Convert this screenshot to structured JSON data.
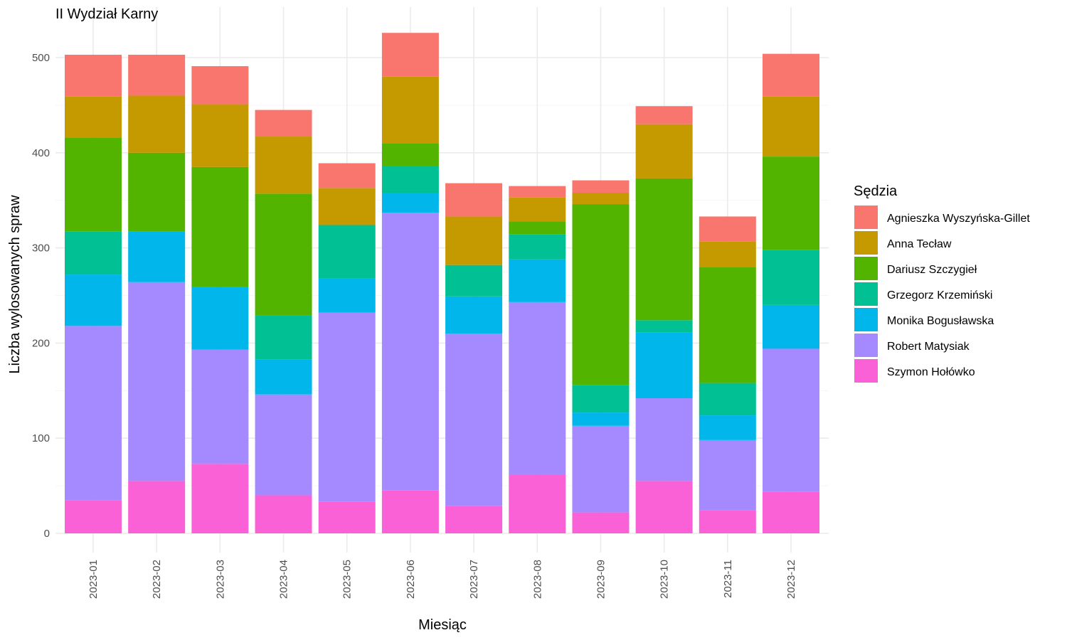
{
  "chart_data": {
    "type": "bar",
    "stacked": true,
    "title": "II Wydział Karny",
    "xlabel": "Miesiąc",
    "ylabel": "Liczba wylosowanych spraw",
    "ylim": [
      0,
      540
    ],
    "yticks": [
      0,
      100,
      200,
      300,
      400,
      500
    ],
    "grid": true,
    "legend_title": "Sędzia",
    "legend_position": "right",
    "categories": [
      "2023-01",
      "2023-02",
      "2023-03",
      "2023-04",
      "2023-05",
      "2023-06",
      "2023-07",
      "2023-08",
      "2023-09",
      "2023-10",
      "2023-11",
      "2023-12"
    ],
    "series": [
      {
        "name": "Szymon Hołówko",
        "color": "#FB61D7",
        "values": [
          35,
          55,
          73,
          40,
          33,
          45,
          29,
          62,
          22,
          55,
          24,
          44
        ]
      },
      {
        "name": "Robert Matysiak",
        "color": "#A58AFF",
        "values": [
          183,
          209,
          120,
          106,
          199,
          292,
          181,
          181,
          91,
          87,
          74,
          150
        ]
      },
      {
        "name": "Monika Bogusławska",
        "color": "#00B6EB",
        "values": [
          54,
          53,
          66,
          37,
          36,
          21,
          39,
          45,
          14,
          69,
          26,
          46
        ]
      },
      {
        "name": "Grzegorz Krzemiński",
        "color": "#00C094",
        "values": [
          45,
          0,
          0,
          46,
          56,
          28,
          33,
          26,
          29,
          13,
          34,
          58
        ]
      },
      {
        "name": "Dariusz Szczygieł",
        "color": "#53B400",
        "values": [
          99,
          83,
          126,
          128,
          0,
          24,
          0,
          14,
          190,
          149,
          122,
          98
        ]
      },
      {
        "name": "Anna Tecław",
        "color": "#C49A00",
        "values": [
          43,
          60,
          66,
          60,
          39,
          70,
          51,
          25,
          12,
          57,
          27,
          63
        ]
      },
      {
        "name": "Agnieszka Wyszyńska-Gillet",
        "color": "#F8766D",
        "values": [
          44,
          43,
          40,
          28,
          26,
          46,
          35,
          12,
          13,
          19,
          26,
          45
        ]
      }
    ],
    "legend_order": [
      "Agnieszka Wyszyńska-Gillet",
      "Anna Tecław",
      "Dariusz Szczygieł",
      "Grzegorz Krzemiński",
      "Monika Bogusławska",
      "Robert Matysiak",
      "Szymon Hołówko"
    ]
  }
}
